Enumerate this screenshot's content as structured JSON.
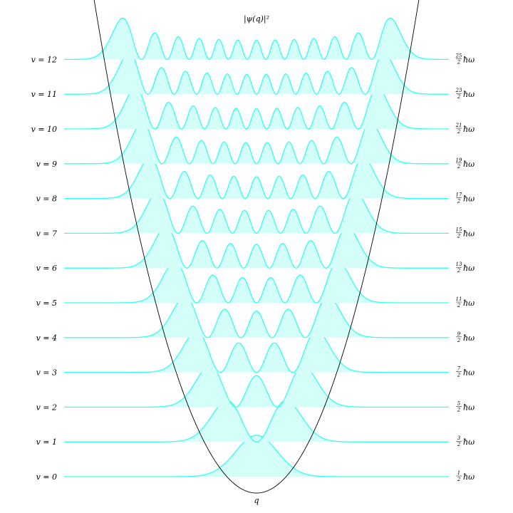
{
  "chart_data": {
    "type": "line",
    "title": "|ψ(q)|²",
    "xlabel": "q",
    "ylabel": "",
    "grid": false,
    "x_range": [
      -6.5,
      6.5
    ],
    "fill": true,
    "colors": {
      "curve": "#33ffee",
      "fill": "#d4fff8",
      "potential": "#000000"
    },
    "potential": "harmonic",
    "series": [
      {
        "v": 0,
        "left_label": "v = 0",
        "energy_num": "1",
        "energy_den": "2"
      },
      {
        "v": 1,
        "left_label": "v = 1",
        "energy_num": "3",
        "energy_den": "2"
      },
      {
        "v": 2,
        "left_label": "v = 2",
        "energy_num": "5",
        "energy_den": "2"
      },
      {
        "v": 3,
        "left_label": "v = 3",
        "energy_num": "7",
        "energy_den": "2"
      },
      {
        "v": 4,
        "left_label": "v = 4",
        "energy_num": "9",
        "energy_den": "2"
      },
      {
        "v": 5,
        "left_label": "v = 5",
        "energy_num": "11",
        "energy_den": "2"
      },
      {
        "v": 6,
        "left_label": "v = 6",
        "energy_num": "13",
        "energy_den": "2"
      },
      {
        "v": 7,
        "left_label": "v = 7",
        "energy_num": "15",
        "energy_den": "2"
      },
      {
        "v": 8,
        "left_label": "v = 8",
        "energy_num": "17",
        "energy_den": "2"
      },
      {
        "v": 9,
        "left_label": "v = 9",
        "energy_num": "19",
        "energy_den": "2"
      },
      {
        "v": 10,
        "left_label": "v = 10",
        "energy_num": "21",
        "energy_den": "2"
      },
      {
        "v": 11,
        "left_label": "v = 11",
        "energy_num": "23",
        "energy_den": "2"
      },
      {
        "v": 12,
        "left_label": "v = 12",
        "energy_num": "25",
        "energy_den": "2"
      }
    ],
    "energy_unit": "ħω"
  }
}
